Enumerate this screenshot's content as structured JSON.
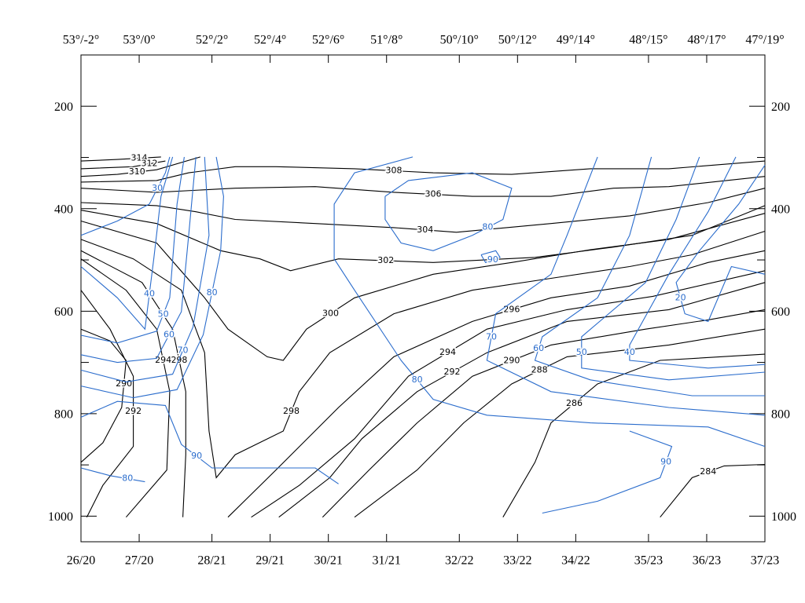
{
  "chart_data": {
    "type": "contour",
    "xlim": [
      0,
      47
    ],
    "xticks": [
      {
        "value": 0,
        "label": "26/20"
      },
      {
        "value": 4,
        "label": "27/20"
      },
      {
        "value": 9,
        "label": "28/21"
      },
      {
        "value": 13,
        "label": "29/21"
      },
      {
        "value": 17,
        "label": "30/21"
      },
      {
        "value": 21,
        "label": "31/21"
      },
      {
        "value": 26,
        "label": "32/22"
      },
      {
        "value": 30,
        "label": "33/22"
      },
      {
        "value": 34,
        "label": "34/22"
      },
      {
        "value": 39,
        "label": "35/23"
      },
      {
        "value": 43,
        "label": "36/23"
      },
      {
        "value": 47,
        "label": "37/23"
      }
    ],
    "x2ticks": [
      {
        "value": 0,
        "label": "53°/-2°"
      },
      {
        "value": 4,
        "label": "53°/0°"
      },
      {
        "value": 9,
        "label": "52°/2°"
      },
      {
        "value": 13,
        "label": "52°/4°"
      },
      {
        "value": 17,
        "label": "52°/6°"
      },
      {
        "value": 21,
        "label": "51°/8°"
      },
      {
        "value": 26,
        "label": "50°/10°"
      },
      {
        "value": 30,
        "label": "50°/12°"
      },
      {
        "value": 34,
        "label": "49°/14°"
      },
      {
        "value": 39,
        "label": "48°/15°"
      },
      {
        "value": 43,
        "label": "48°/17°"
      },
      {
        "value": 47,
        "label": "47°/19°"
      }
    ],
    "ylim": [
      1050,
      100
    ],
    "yticks": [
      200,
      400,
      600,
      800,
      1000
    ],
    "yminorticks": [
      100,
      300,
      500,
      700,
      900
    ],
    "series": [
      {
        "name": "314",
        "color": "#000000",
        "x": [
          0,
          2.5,
          5.5
        ],
        "y": [
          307,
          304,
          299
        ]
      },
      {
        "name": "312",
        "color": "#000000",
        "x": [
          0,
          3.6,
          5.8
        ],
        "y": [
          322,
          318,
          307
        ]
      },
      {
        "name": "310",
        "color": "#000000",
        "x": [
          0,
          2.5,
          5.2,
          8.2
        ],
        "y": [
          337,
          333,
          324,
          299
        ]
      },
      {
        "name": "308",
        "color": "#000000",
        "x": [
          0,
          5.2,
          7.4,
          10.6,
          13.4,
          18.8,
          24.2,
          29.6,
          35,
          40.4,
          47
        ],
        "y": [
          348,
          345,
          330,
          318,
          318,
          322,
          330,
          333,
          322,
          322,
          307
        ]
      },
      {
        "name": "306",
        "color": "#000000",
        "x": [
          0,
          5.2,
          10.6,
          16.1,
          21.5,
          26.9,
          32.3,
          36.6,
          40.4,
          47
        ],
        "y": [
          360,
          368,
          360,
          357,
          368,
          376,
          376,
          360,
          357,
          337
        ]
      },
      {
        "name": "304",
        "color": "#000000",
        "x": [
          0,
          5.2,
          7.9,
          10.6,
          16.1,
          21.5,
          25.8,
          32.3,
          37.7,
          43.1,
          47
        ],
        "y": [
          388,
          394,
          406,
          421,
          429,
          437,
          446,
          429,
          414,
          388,
          360
        ]
      },
      {
        "name": "302",
        "color": "#000000",
        "x": [
          0,
          5.2,
          9.6,
          12.3,
          14.4,
          17.7,
          24.2,
          31.2,
          36.6,
          42,
          47
        ],
        "y": [
          403,
          429,
          482,
          498,
          521,
          498,
          505,
          495,
          475,
          452,
          394
        ]
      },
      {
        "name": "300",
        "color": "#000000",
        "x": [
          0,
          5.2,
          8.5,
          10.1,
          12.8,
          13.9,
          15.5,
          18.8,
          24.2,
          29.6,
          35,
          40.4,
          47
        ],
        "y": [
          424,
          467,
          574,
          635,
          689,
          696,
          635,
          574,
          528,
          505,
          480,
          460,
          409
        ]
      },
      {
        "name": "298",
        "color": "#000000",
        "x": [
          0,
          3.6,
          6.9,
          8.5,
          8.8,
          9.3,
          10.6,
          13.9,
          15,
          17.1,
          21.5,
          26.9,
          32.3,
          37.7,
          42,
          47
        ],
        "y": [
          460,
          498,
          559,
          681,
          834,
          925,
          880,
          834,
          757,
          681,
          605,
          559,
          536,
          513,
          490,
          444
        ]
      },
      {
        "name": "298",
        "color": "#000000",
        "x": [
          0,
          4.2,
          6.3,
          7.2,
          7.2,
          7
        ],
        "y": [
          482,
          544,
          635,
          757,
          880,
          1002
        ]
      },
      {
        "name": "296",
        "color": "#000000",
        "x": [
          10.1,
          13.4,
          17.7,
          21.5,
          26.9,
          32.3,
          37.7,
          43.1,
          47
        ],
        "y": [
          1002,
          910,
          788,
          689,
          620,
          574,
          551,
          505,
          482
        ]
      },
      {
        "name": "294",
        "color": "#000000",
        "x": [
          0,
          3.1,
          5.2,
          6.1,
          5.9,
          3.1
        ],
        "y": [
          498,
          559,
          635,
          757,
          910,
          1002
        ]
      },
      {
        "name": "294",
        "color": "#000000",
        "x": [
          11.7,
          15,
          18.8,
          22.5,
          27.9,
          33.4,
          39.3,
          47
        ],
        "y": [
          1002,
          940,
          849,
          727,
          635,
          597,
          571,
          521
        ]
      },
      {
        "name": "292",
        "color": "#000000",
        "x": [
          0,
          2,
          3.6,
          3.6,
          1.5,
          0.4
        ],
        "y": [
          559,
          635,
          727,
          864,
          940,
          1002
        ]
      },
      {
        "name": "292",
        "color": "#000000",
        "x": [
          13.6,
          17.1,
          19.3,
          23.1,
          27.9,
          33.4,
          40.4,
          47
        ],
        "y": [
          1002,
          925,
          849,
          757,
          681,
          620,
          597,
          544
        ]
      },
      {
        "name": "290",
        "color": "#000000",
        "x": [
          0,
          2,
          3.1,
          2.8,
          1.5,
          0
        ],
        "y": [
          635,
          658,
          696,
          788,
          857,
          895
        ]
      },
      {
        "name": "290",
        "color": "#000000",
        "x": [
          16.6,
          19.8,
          23.1,
          26.9,
          32.3,
          38.8,
          43.1,
          47
        ],
        "y": [
          1002,
          910,
          818,
          727,
          666,
          635,
          617,
          597
        ]
      },
      {
        "name": "288",
        "color": "#000000",
        "x": [
          18.8,
          23.1,
          26.3,
          29.6,
          33.4,
          40.4,
          47
        ],
        "y": [
          1002,
          910,
          818,
          742,
          689,
          666,
          635
        ]
      },
      {
        "name": "286",
        "color": "#000000",
        "x": [
          29,
          31.2,
          32.3,
          35.5,
          39.8,
          47
        ],
        "y": [
          1002,
          895,
          818,
          742,
          696,
          684
        ]
      },
      {
        "name": "284",
        "color": "#000000",
        "x": [
          39.8,
          42,
          44.2,
          47
        ],
        "y": [
          1002,
          925,
          902,
          899
        ]
      },
      {
        "name": "30",
        "color": "#2a6ccc",
        "x": [
          0,
          2.5,
          4.7,
          5.8,
          6.1
        ],
        "y": [
          452,
          424,
          391,
          330,
          299
        ]
      },
      {
        "name": "40",
        "color": "#2a6ccc",
        "x": [
          0,
          2.5,
          4.4,
          5,
          5.5,
          6.3
        ],
        "y": [
          513,
          574,
          635,
          498,
          376,
          299
        ]
      },
      {
        "name": "50",
        "color": "#2a6ccc",
        "x": [
          0,
          2.5,
          5.2,
          6.1,
          6.6,
          7.1
        ],
        "y": [
          647,
          662,
          639,
          574,
          391,
          299
        ]
      },
      {
        "name": "60",
        "color": "#2a6ccc",
        "x": [
          0,
          2.5,
          5.2,
          6.9,
          7.4,
          7.9
        ],
        "y": [
          685,
          700,
          692,
          601,
          452,
          299
        ]
      },
      {
        "name": "70",
        "color": "#2a6ccc",
        "x": [
          0,
          3.1,
          6.3,
          7.7,
          8.8,
          8.5
        ],
        "y": [
          715,
          738,
          723,
          631,
          452,
          299
        ]
      },
      {
        "name": "80",
        "color": "#2a6ccc",
        "x": [
          0,
          3.6,
          6.6,
          8.4,
          9.6,
          9.8,
          9.3
        ],
        "y": [
          746,
          769,
          753,
          646,
          482,
          376,
          299
        ]
      },
      {
        "name": "90",
        "color": "#2a6ccc",
        "x": [
          0,
          2.5,
          5.8,
          6.9,
          9,
          12.3,
          16.1,
          17.7
        ],
        "y": [
          807,
          776,
          784,
          860,
          906,
          906,
          906,
          937
        ]
      },
      {
        "name": "80",
        "color": "#2a6ccc",
        "x": [
          0,
          2,
          4.4
        ],
        "y": [
          906,
          921,
          933
        ]
      },
      {
        "name": "80",
        "color": "#2a6ccc",
        "x": [
          22.8,
          18.8,
          17.4,
          17.4,
          18.8,
          22,
          24.2,
          27.9,
          35,
          43.1,
          47
        ],
        "y": [
          299,
          330,
          391,
          498,
          559,
          696,
          772,
          803,
          818,
          826,
          864
        ]
      },
      {
        "name": "80",
        "color": "#2a6ccc",
        "x": [
          20.9,
          22.5,
          26.9,
          29.6,
          29,
          26.9,
          24.2,
          22,
          20.9,
          20.9
        ],
        "y": [
          376,
          345,
          330,
          360,
          421,
          452,
          482,
          467,
          421,
          376
        ]
      },
      {
        "name": "90",
        "color": "#2a6ccc",
        "x": [
          27.5,
          28.5,
          28.8,
          27.8,
          27.5
        ],
        "y": [
          490,
          482,
          495,
          505,
          490
        ]
      },
      {
        "name": "70",
        "color": "#2a6ccc",
        "x": [
          35.5,
          33.4,
          32.3,
          28.5,
          27.9,
          32.3,
          40.4,
          47
        ],
        "y": [
          299,
          452,
          528,
          605,
          696,
          757,
          788,
          803
        ]
      },
      {
        "name": "60",
        "color": "#2a6ccc",
        "x": [
          39.2,
          37.7,
          35.5,
          31.7,
          31.2,
          35,
          42,
          47
        ],
        "y": [
          299,
          452,
          574,
          650,
          696,
          734,
          765,
          765
        ]
      },
      {
        "name": "50",
        "color": "#2a6ccc",
        "x": [
          42.5,
          40.9,
          38.8,
          34.4,
          34.4,
          40.4,
          47
        ],
        "y": [
          299,
          421,
          544,
          650,
          711,
          734,
          719
        ]
      },
      {
        "name": "40",
        "color": "#2a6ccc",
        "x": [
          45,
          43.1,
          40.4,
          37.7,
          37.7,
          43.1,
          47
        ],
        "y": [
          299,
          406,
          528,
          666,
          696,
          711,
          704
        ]
      },
      {
        "name": "20",
        "color": "#2a6ccc",
        "x": [
          47,
          45.2,
          42.5,
          40.9,
          41.5,
          43.1,
          44.7,
          47
        ],
        "y": [
          315,
          391,
          482,
          544,
          605,
          620,
          513,
          528
        ]
      },
      {
        "name": "90",
        "color": "#2a6ccc",
        "x": [
          31.7,
          35.5,
          39.8,
          40.6,
          37.7
        ],
        "y": [
          994,
          971,
          925,
          864,
          834
        ]
      }
    ]
  }
}
